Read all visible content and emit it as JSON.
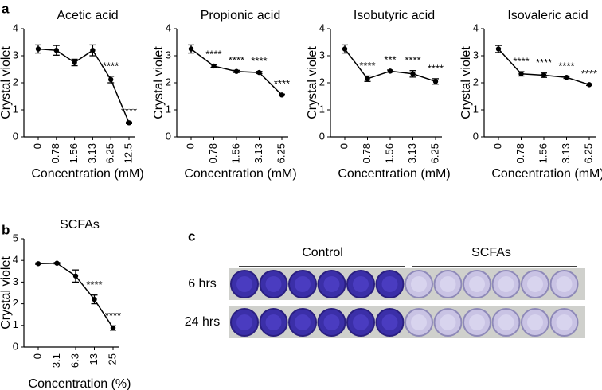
{
  "panel_labels": [
    "a",
    "b",
    "c"
  ],
  "photo": {
    "groups": [
      "Control",
      "SCFAs"
    ],
    "rows": [
      "6 hrs",
      "24 hrs"
    ]
  },
  "chart_data": [
    {
      "type": "line",
      "title": "Acetic acid",
      "xlabel": "Concentration (mM)",
      "ylabel": "Crystal violet",
      "categories": [
        "0",
        "0.78",
        "1.56",
        "3.13",
        "6.25",
        "12.5"
      ],
      "values": [
        3.25,
        3.2,
        2.75,
        3.2,
        2.12,
        0.52
      ],
      "errors": [
        0.15,
        0.18,
        0.12,
        0.2,
        0.12,
        0.03
      ],
      "annotations": [
        null,
        null,
        null,
        null,
        "****",
        "****"
      ],
      "color": "#000000",
      "ylim": [
        0,
        4
      ],
      "yticks": [
        0,
        1,
        2,
        3,
        4
      ]
    },
    {
      "type": "line",
      "title": "Propionic acid",
      "xlabel": "Concentration (mM)",
      "ylabel": "Crystal violet",
      "categories": [
        "0",
        "0.78",
        "1.56",
        "3.13",
        "6.25"
      ],
      "values": [
        3.25,
        2.62,
        2.42,
        2.38,
        1.55
      ],
      "errors": [
        0.15,
        0.05,
        0.04,
        0.04,
        0.03
      ],
      "annotations": [
        null,
        "****",
        "****",
        "****",
        "****"
      ],
      "color": "#000000",
      "ylim": [
        0,
        4
      ],
      "yticks": [
        0,
        1,
        2,
        3,
        4
      ]
    },
    {
      "type": "line",
      "title": "Isobutyric acid",
      "xlabel": "Concentration (mM)",
      "ylabel": "Crystal violet",
      "categories": [
        "0",
        "0.78",
        "1.56",
        "3.13",
        "6.25"
      ],
      "values": [
        3.25,
        2.15,
        2.43,
        2.33,
        2.05
      ],
      "errors": [
        0.15,
        0.1,
        0.04,
        0.12,
        0.1
      ],
      "annotations": [
        null,
        "****",
        "***",
        "****",
        "****"
      ],
      "color": "#000000",
      "ylim": [
        0,
        4
      ],
      "yticks": [
        0,
        1,
        2,
        3,
        4
      ]
    },
    {
      "type": "line",
      "title": "Isovaleric acid",
      "xlabel": "Concentration (mM)",
      "ylabel": "Crystal violet",
      "categories": [
        "0",
        "0.78",
        "1.56",
        "3.13",
        "6.25"
      ],
      "values": [
        3.25,
        2.33,
        2.28,
        2.2,
        1.93
      ],
      "errors": [
        0.13,
        0.08,
        0.08,
        0.04,
        0.03
      ],
      "annotations": [
        null,
        "****",
        "****",
        "****",
        "****"
      ],
      "color": "#000000",
      "ylim": [
        0,
        4
      ],
      "yticks": [
        0,
        1,
        2,
        3,
        4
      ]
    },
    {
      "type": "line",
      "title": "SCFAs",
      "xlabel": "Concentration (%)",
      "ylabel": "Crystal violet",
      "categories": [
        "0",
        "3.1",
        "6.3",
        "13",
        "25"
      ],
      "values": [
        3.85,
        3.87,
        3.28,
        2.2,
        0.88
      ],
      "errors": [
        0.03,
        0.03,
        0.28,
        0.2,
        0.1
      ],
      "annotations": [
        null,
        null,
        null,
        "****",
        "****"
      ],
      "color": "#000000",
      "ylim": [
        0,
        5
      ],
      "yticks": [
        0,
        1,
        2,
        3,
        4,
        5
      ]
    }
  ]
}
